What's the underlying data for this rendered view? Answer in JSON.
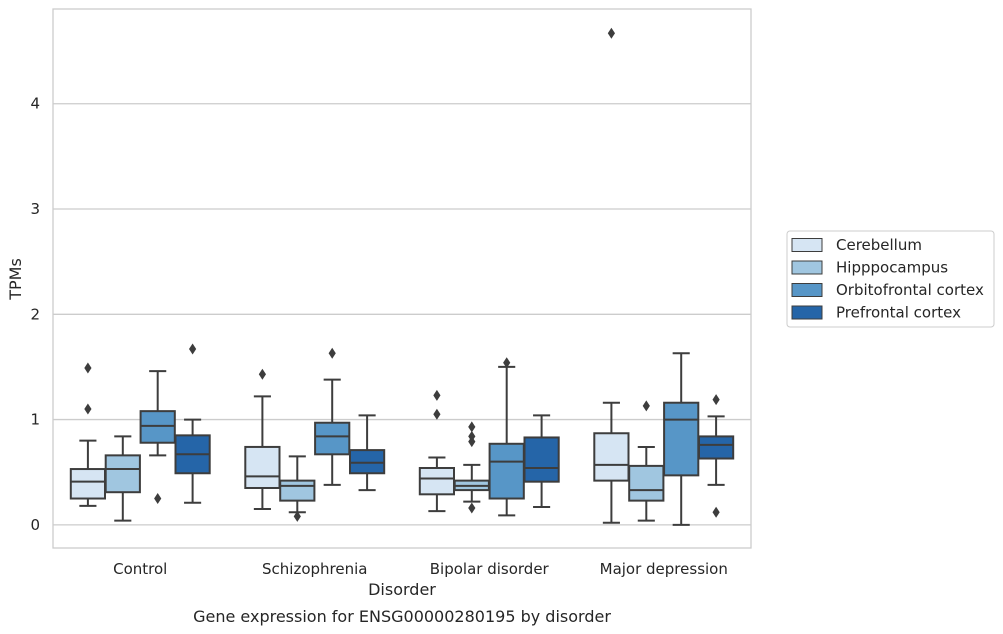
{
  "chart_data": {
    "type": "box",
    "title": "Gene expression for ENSG00000280195 by disorder",
    "xlabel": "Disorder",
    "ylabel": "TPMs",
    "ylim": [
      -0.22,
      4.9
    ],
    "yticks": [
      0,
      1,
      2,
      3,
      4
    ],
    "grid": "horizontal",
    "legend_position": "right",
    "categories": [
      "Control",
      "Schizophrenia",
      "Bipolar disorder",
      "Major depression"
    ],
    "series": [
      {
        "name": "Cerebellum",
        "color": "#d6e5f3",
        "boxes": [
          {
            "whislo": 0.18,
            "q1": 0.25,
            "med": 0.41,
            "q3": 0.53,
            "whishi": 0.8,
            "fliers": [
              1.1,
              1.49
            ]
          },
          {
            "whislo": 0.15,
            "q1": 0.35,
            "med": 0.46,
            "q3": 0.74,
            "whishi": 1.22,
            "fliers": [
              1.43
            ]
          },
          {
            "whislo": 0.13,
            "q1": 0.29,
            "med": 0.44,
            "q3": 0.54,
            "whishi": 0.64,
            "fliers": [
              1.05,
              1.23
            ]
          },
          {
            "whislo": 0.02,
            "q1": 0.42,
            "med": 0.57,
            "q3": 0.87,
            "whishi": 1.16,
            "fliers": [
              4.67
            ]
          }
        ]
      },
      {
        "name": "Hipppocampus",
        "color": "#a0c6e0",
        "boxes": [
          {
            "whislo": 0.04,
            "q1": 0.31,
            "med": 0.53,
            "q3": 0.66,
            "whishi": 0.84,
            "fliers": []
          },
          {
            "whislo": 0.12,
            "q1": 0.23,
            "med": 0.37,
            "q3": 0.42,
            "whishi": 0.65,
            "fliers": [
              0.08
            ]
          },
          {
            "whislo": 0.22,
            "q1": 0.33,
            "med": 0.37,
            "q3": 0.42,
            "whishi": 0.57,
            "fliers": [
              0.16,
              0.79,
              0.84,
              0.93
            ]
          },
          {
            "whislo": 0.04,
            "q1": 0.23,
            "med": 0.33,
            "q3": 0.56,
            "whishi": 0.74,
            "fliers": [
              1.13
            ]
          }
        ]
      },
      {
        "name": "Orbitofrontal cortex",
        "color": "#5796c7",
        "boxes": [
          {
            "whislo": 0.66,
            "q1": 0.78,
            "med": 0.94,
            "q3": 1.08,
            "whishi": 1.46,
            "fliers": [
              0.25
            ]
          },
          {
            "whislo": 0.38,
            "q1": 0.67,
            "med": 0.84,
            "q3": 0.97,
            "whishi": 1.38,
            "fliers": [
              1.63
            ]
          },
          {
            "whislo": 0.09,
            "q1": 0.25,
            "med": 0.6,
            "q3": 0.77,
            "whishi": 1.5,
            "fliers": [
              1.54
            ]
          },
          {
            "whislo": 0.0,
            "q1": 0.47,
            "med": 1.0,
            "q3": 1.16,
            "whishi": 1.63,
            "fliers": []
          }
        ]
      },
      {
        "name": "Prefrontal cortex",
        "color": "#2565a8",
        "boxes": [
          {
            "whislo": 0.21,
            "q1": 0.49,
            "med": 0.67,
            "q3": 0.85,
            "whishi": 1.0,
            "fliers": [
              1.67
            ]
          },
          {
            "whislo": 0.33,
            "q1": 0.49,
            "med": 0.59,
            "q3": 0.71,
            "whishi": 1.04,
            "fliers": []
          },
          {
            "whislo": 0.17,
            "q1": 0.41,
            "med": 0.54,
            "q3": 0.83,
            "whishi": 1.04,
            "fliers": []
          },
          {
            "whislo": 0.38,
            "q1": 0.63,
            "med": 0.76,
            "q3": 0.84,
            "whishi": 1.03,
            "fliers": [
              0.12,
              1.19
            ]
          }
        ]
      }
    ]
  }
}
